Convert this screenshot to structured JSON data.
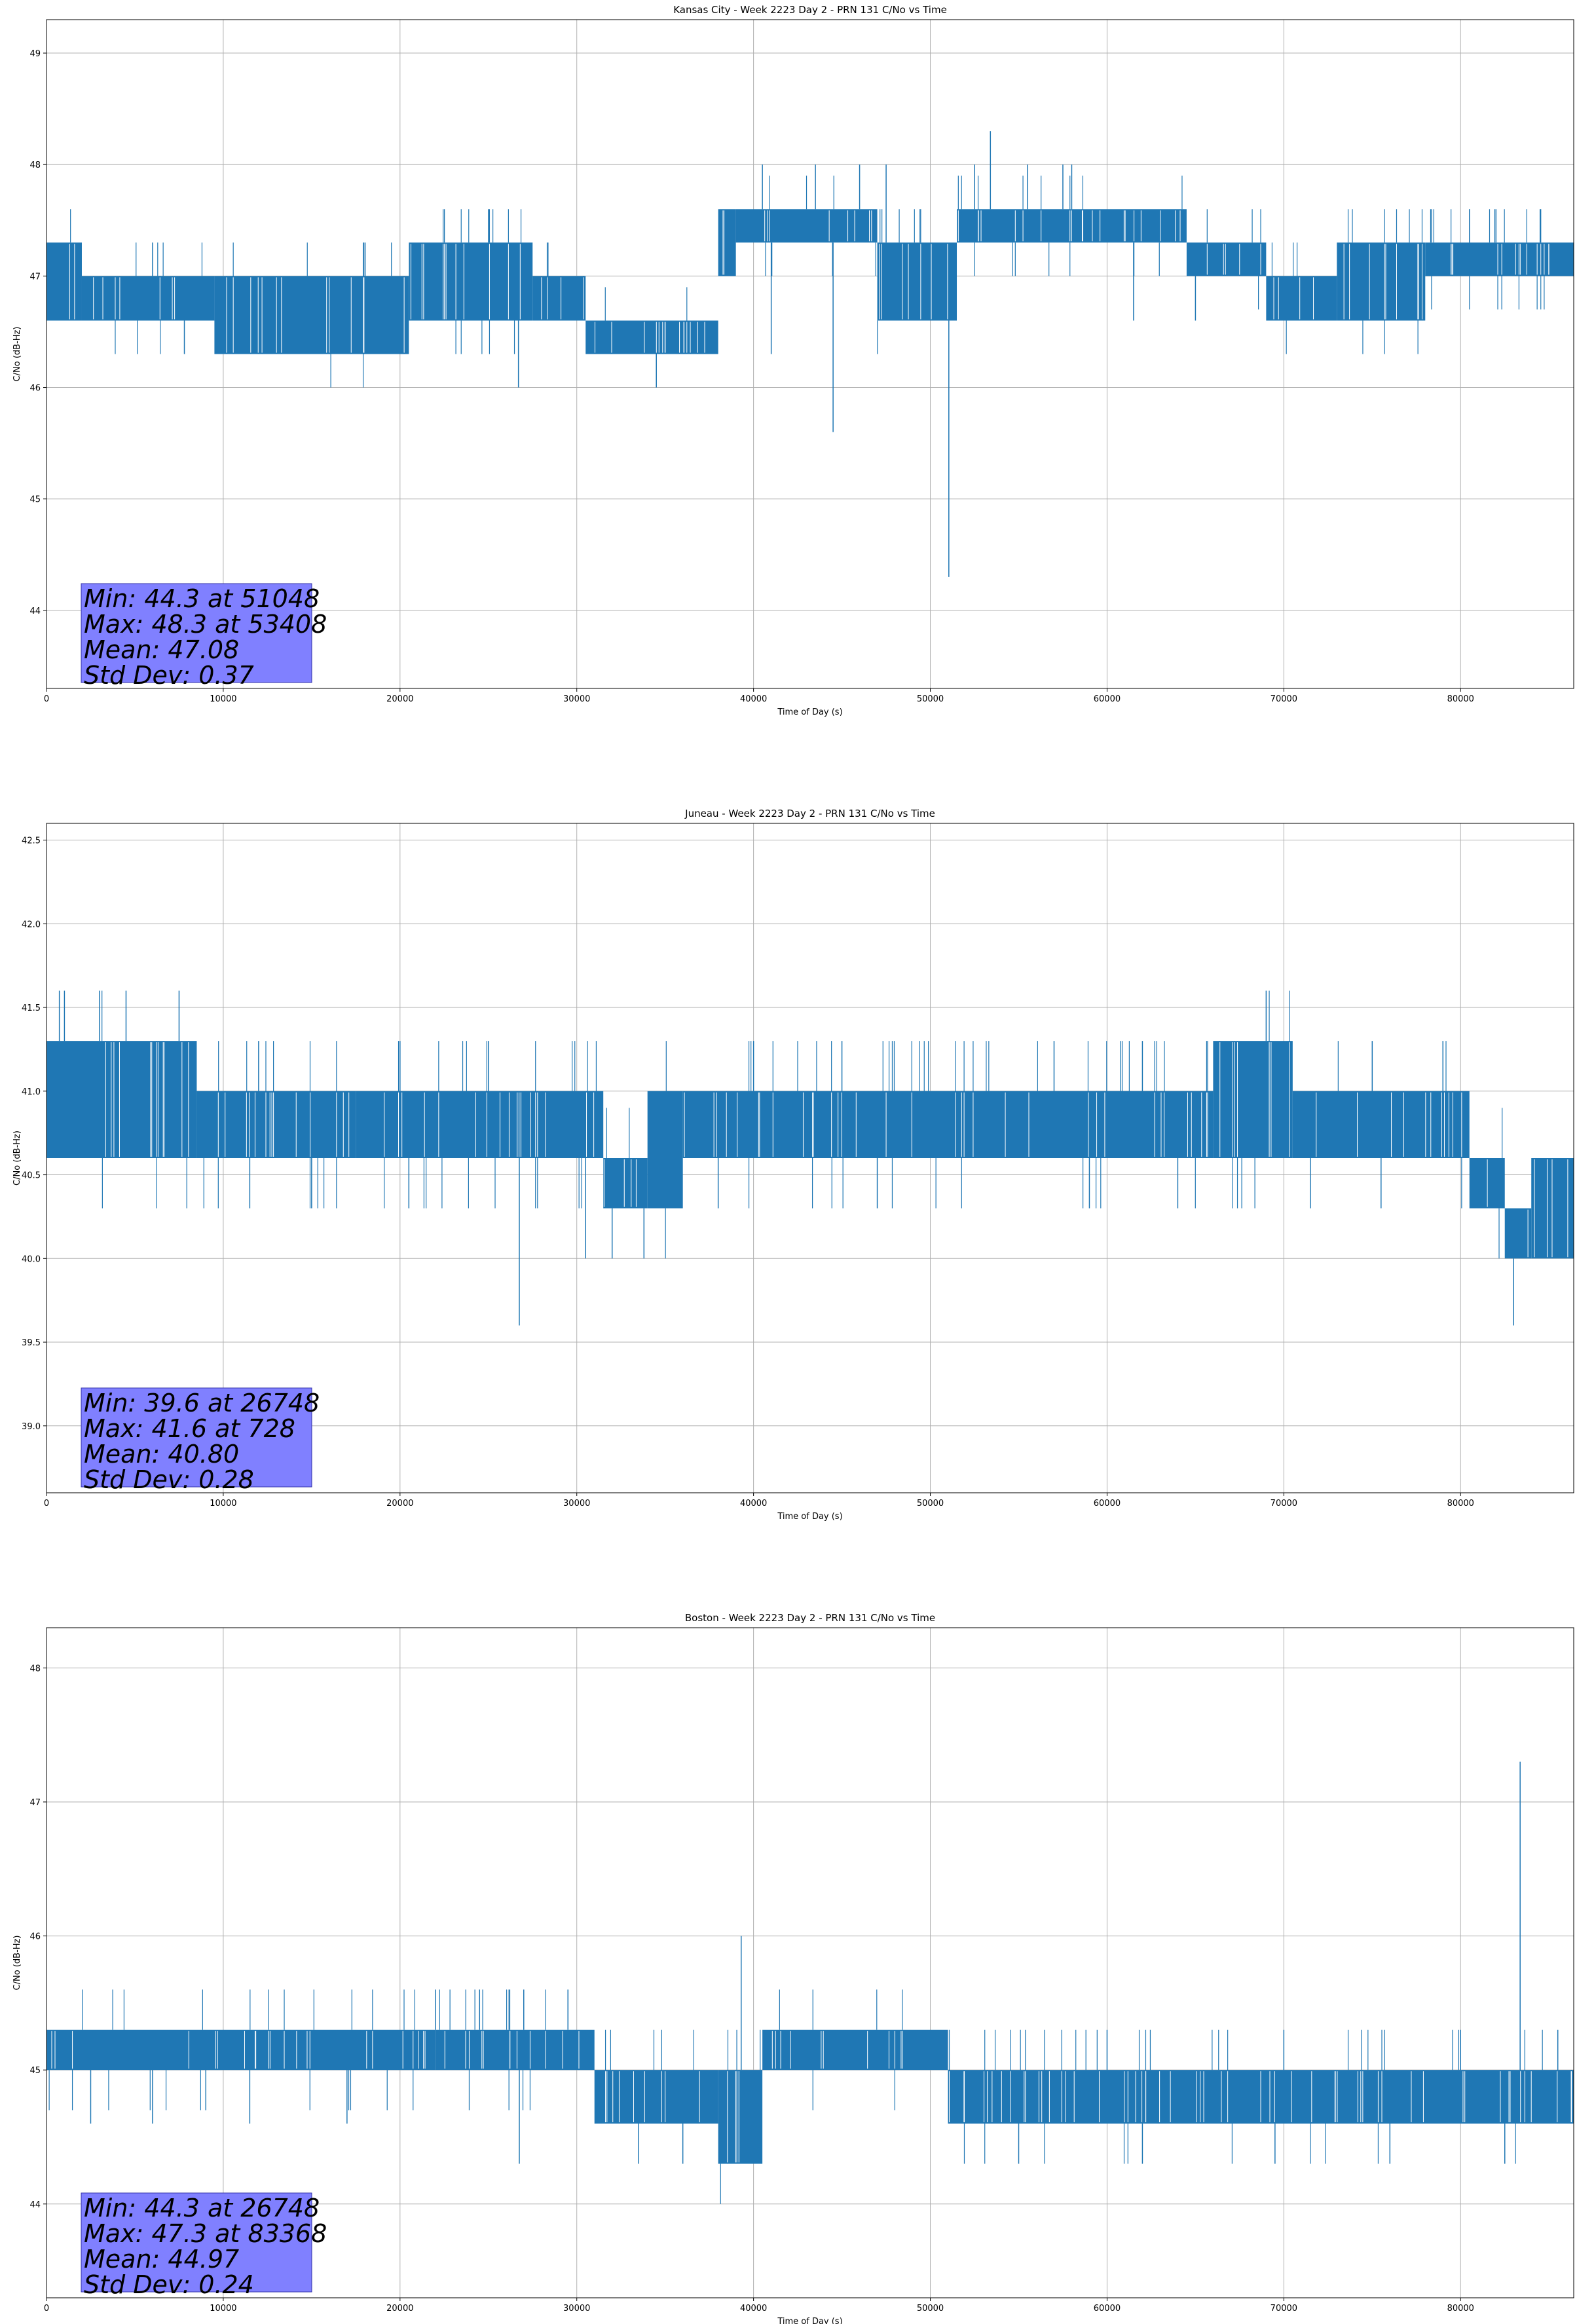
{
  "figure": {
    "background": "#ffffff",
    "series_color": "#1f77b4",
    "stats_box_color": "#8080ff",
    "grid_color": "#b0b0b0"
  },
  "chart_data": [
    {
      "type": "line",
      "title": "Kansas City - Week 2223 Day 2 - PRN 131 C/No vs Time",
      "xlabel": "Time of Day (s)",
      "ylabel": "C/No (dB-Hz)",
      "xlim": [
        0,
        86400
      ],
      "ylim": [
        43.3,
        49.3
      ],
      "xticks": [
        0,
        10000,
        20000,
        30000,
        40000,
        50000,
        60000,
        70000,
        80000
      ],
      "xtick_labels": [
        "0",
        "10000",
        "20000",
        "30000",
        "40000",
        "50000",
        "60000",
        "70000",
        "80000"
      ],
      "yticks": [
        44,
        45,
        46,
        47,
        48,
        49
      ],
      "ytick_labels": [
        "44",
        "45",
        "46",
        "47",
        "48",
        "49"
      ],
      "grid": true,
      "series": [
        {
          "segments": [
            {
              "x": [
                0,
                2000
              ],
              "lo": 46.6,
              "hi": 47.3
            },
            {
              "x": [
                2000,
                9500
              ],
              "lo": 46.6,
              "hi": 47.0
            },
            {
              "x": [
                9500,
                20500
              ],
              "lo": 46.3,
              "hi": 47.0
            },
            {
              "x": [
                20500,
                27500
              ],
              "lo": 46.6,
              "hi": 47.3
            },
            {
              "x": [
                27500,
                30500
              ],
              "lo": 46.6,
              "hi": 47.0
            },
            {
              "x": [
                30500,
                38000
              ],
              "lo": 46.3,
              "hi": 46.6
            },
            {
              "x": [
                38000,
                39000
              ],
              "lo": 47.0,
              "hi": 47.6
            },
            {
              "x": [
                39000,
                47000
              ],
              "lo": 47.3,
              "hi": 47.6
            },
            {
              "x": [
                47000,
                51500
              ],
              "lo": 46.6,
              "hi": 47.3
            },
            {
              "x": [
                51500,
                58500
              ],
              "lo": 47.3,
              "hi": 47.6
            },
            {
              "x": [
                58500,
                64500
              ],
              "lo": 47.3,
              "hi": 47.6
            },
            {
              "x": [
                64500,
                69000
              ],
              "lo": 47.0,
              "hi": 47.3
            },
            {
              "x": [
                69000,
                73000
              ],
              "lo": 46.6,
              "hi": 47.0
            },
            {
              "x": [
                73000,
                78000
              ],
              "lo": 46.6,
              "hi": 47.3
            },
            {
              "x": [
                78000,
                86400
              ],
              "lo": 47.0,
              "hi": 47.3
            }
          ],
          "upper_spikes": [
            [
              1000,
              47.3
            ],
            [
              6000,
              47.3
            ],
            [
              15000,
              47.0
            ],
            [
              25000,
              47.6
            ],
            [
              40500,
              48.0
            ],
            [
              43500,
              48.0
            ],
            [
              46000,
              48.0
            ],
            [
              47500,
              48.0
            ],
            [
              52500,
              48.0
            ],
            [
              53400,
              48.3
            ],
            [
              55500,
              48.0
            ],
            [
              57500,
              48.0
            ],
            [
              58000,
              48.0
            ],
            [
              61000,
              47.6
            ],
            [
              68000,
              47.3
            ],
            [
              75000,
              47.3
            ],
            [
              80500,
              47.6
            ],
            [
              82000,
              47.6
            ],
            [
              84500,
              47.6
            ]
          ],
          "lower_spikes": [
            [
              7800,
              46.3
            ],
            [
              10500,
              46.3
            ],
            [
              14000,
              46.3
            ],
            [
              19500,
              46.3
            ],
            [
              26700,
              46.0
            ],
            [
              34500,
              46.0
            ],
            [
              41000,
              46.3
            ],
            [
              44500,
              45.6
            ],
            [
              48000,
              46.6
            ],
            [
              51048,
              44.3
            ],
            [
              61500,
              46.6
            ],
            [
              65000,
              46.6
            ],
            [
              70500,
              46.6
            ],
            [
              76000,
              46.6
            ]
          ]
        }
      ],
      "stats": [
        "Min: 44.3 at 51048",
        "Max: 48.3 at 53408",
        "Mean: 47.08",
        "Std Dev: 0.37"
      ]
    },
    {
      "type": "line",
      "title": "Juneau - Week 2223 Day 2 - PRN 131 C/No vs Time",
      "xlabel": "Time of Day (s)",
      "ylabel": "C/No (dB-Hz)",
      "xlim": [
        0,
        86400
      ],
      "ylim": [
        38.6,
        42.6
      ],
      "xticks": [
        0,
        10000,
        20000,
        30000,
        40000,
        50000,
        60000,
        70000,
        80000
      ],
      "xtick_labels": [
        "0",
        "10000",
        "20000",
        "30000",
        "40000",
        "50000",
        "60000",
        "70000",
        "80000"
      ],
      "yticks": [
        39.0,
        39.5,
        40.0,
        40.5,
        41.0,
        41.5,
        42.0,
        42.5
      ],
      "ytick_labels": [
        "39.0",
        "39.5",
        "40.0",
        "40.5",
        "41.0",
        "41.5",
        "42.0",
        "42.5"
      ],
      "grid": true,
      "series": [
        {
          "segments": [
            {
              "x": [
                0,
                8500
              ],
              "lo": 40.6,
              "hi": 41.3
            },
            {
              "x": [
                8500,
                17500
              ],
              "lo": 40.6,
              "hi": 41.0
            },
            {
              "x": [
                17500,
                31500
              ],
              "lo": 40.6,
              "hi": 41.0
            },
            {
              "x": [
                31500,
                34000
              ],
              "lo": 40.3,
              "hi": 40.6
            },
            {
              "x": [
                34000,
                36000
              ],
              "lo": 40.3,
              "hi": 41.0
            },
            {
              "x": [
                36000,
                66000
              ],
              "lo": 40.6,
              "hi": 41.0
            },
            {
              "x": [
                66000,
                70500
              ],
              "lo": 40.6,
              "hi": 41.3
            },
            {
              "x": [
                70500,
                80500
              ],
              "lo": 40.6,
              "hi": 41.0
            },
            {
              "x": [
                80500,
                82500
              ],
              "lo": 40.3,
              "hi": 40.6
            },
            {
              "x": [
                82500,
                84000
              ],
              "lo": 40.0,
              "hi": 40.3
            },
            {
              "x": [
                84000,
                86400
              ],
              "lo": 40.0,
              "hi": 40.6
            }
          ],
          "upper_spikes": [
            [
              728,
              41.6
            ],
            [
              3000,
              41.6
            ],
            [
              4500,
              41.6
            ],
            [
              7500,
              41.6
            ],
            [
              12000,
              41.3
            ],
            [
              20000,
              41.3
            ],
            [
              25000,
              41.3
            ],
            [
              40000,
              41.3
            ],
            [
              45000,
              41.3
            ],
            [
              57000,
              41.3
            ],
            [
              62000,
              41.3
            ],
            [
              69000,
              41.6
            ],
            [
              75000,
              41.3
            ],
            [
              79000,
              41.3
            ]
          ],
          "lower_spikes": [
            [
              11500,
              40.3
            ],
            [
              15000,
              40.3
            ],
            [
              20500,
              40.3
            ],
            [
              26748,
              39.6
            ],
            [
              30500,
              40.0
            ],
            [
              32000,
              40.0
            ],
            [
              33800,
              40.0
            ],
            [
              38000,
              40.3
            ],
            [
              47000,
              40.3
            ],
            [
              59000,
              40.3
            ],
            [
              64000,
              40.3
            ],
            [
              71500,
              40.3
            ],
            [
              75500,
              40.3
            ],
            [
              83000,
              39.6
            ]
          ]
        }
      ],
      "stats": [
        "Min: 39.6 at 26748",
        "Max: 41.6 at 728",
        "Mean: 40.80",
        "Std Dev: 0.28"
      ]
    },
    {
      "type": "line",
      "title": "Boston - Week 2223 Day 2 - PRN 131 C/No vs Time",
      "xlabel": "Time of Day (s)",
      "ylabel": "C/No (dB-Hz)",
      "xlim": [
        0,
        86400
      ],
      "ylim": [
        43.3,
        48.3
      ],
      "xticks": [
        0,
        10000,
        20000,
        30000,
        40000,
        50000,
        60000,
        70000,
        80000
      ],
      "xtick_labels": [
        "0",
        "10000",
        "20000",
        "30000",
        "40000",
        "50000",
        "60000",
        "70000",
        "80000"
      ],
      "yticks": [
        44,
        45,
        46,
        47,
        48
      ],
      "ytick_labels": [
        "44",
        "45",
        "46",
        "47",
        "48"
      ],
      "grid": true,
      "series": [
        {
          "segments": [
            {
              "x": [
                0,
                22000
              ],
              "lo": 45.0,
              "hi": 45.3
            },
            {
              "x": [
                22000,
                31000
              ],
              "lo": 45.0,
              "hi": 45.3
            },
            {
              "x": [
                31000,
                38000
              ],
              "lo": 44.6,
              "hi": 45.0
            },
            {
              "x": [
                38000,
                40500
              ],
              "lo": 44.3,
              "hi": 45.0
            },
            {
              "x": [
                40500,
                51000
              ],
              "lo": 45.0,
              "hi": 45.3
            },
            {
              "x": [
                51000,
                86400
              ],
              "lo": 44.6,
              "hi": 45.0
            }
          ],
          "upper_spikes": [
            [
              22000,
              45.6
            ],
            [
              24500,
              45.6
            ],
            [
              27000,
              45.6
            ],
            [
              29500,
              45.6
            ],
            [
              39300,
              46.0
            ],
            [
              60000,
              45.3
            ],
            [
              70000,
              45.3
            ],
            [
              80000,
              45.3
            ],
            [
              83368,
              47.3
            ],
            [
              85500,
              45.3
            ]
          ],
          "lower_spikes": [
            [
              2500,
              44.6
            ],
            [
              6000,
              44.6
            ],
            [
              11500,
              44.6
            ],
            [
              17000,
              44.6
            ],
            [
              26748,
              44.3
            ],
            [
              33500,
              44.3
            ],
            [
              36000,
              44.3
            ],
            [
              39000,
              44.3
            ],
            [
              55000,
              44.3
            ],
            [
              62000,
              44.3
            ],
            [
              69500,
              44.3
            ],
            [
              76000,
              44.3
            ],
            [
              82500,
              44.3
            ]
          ]
        }
      ],
      "stats": [
        "Min: 44.3 at 26748",
        "Max: 47.3 at 83368",
        "Mean: 44.97",
        "Std Dev: 0.24"
      ]
    }
  ]
}
